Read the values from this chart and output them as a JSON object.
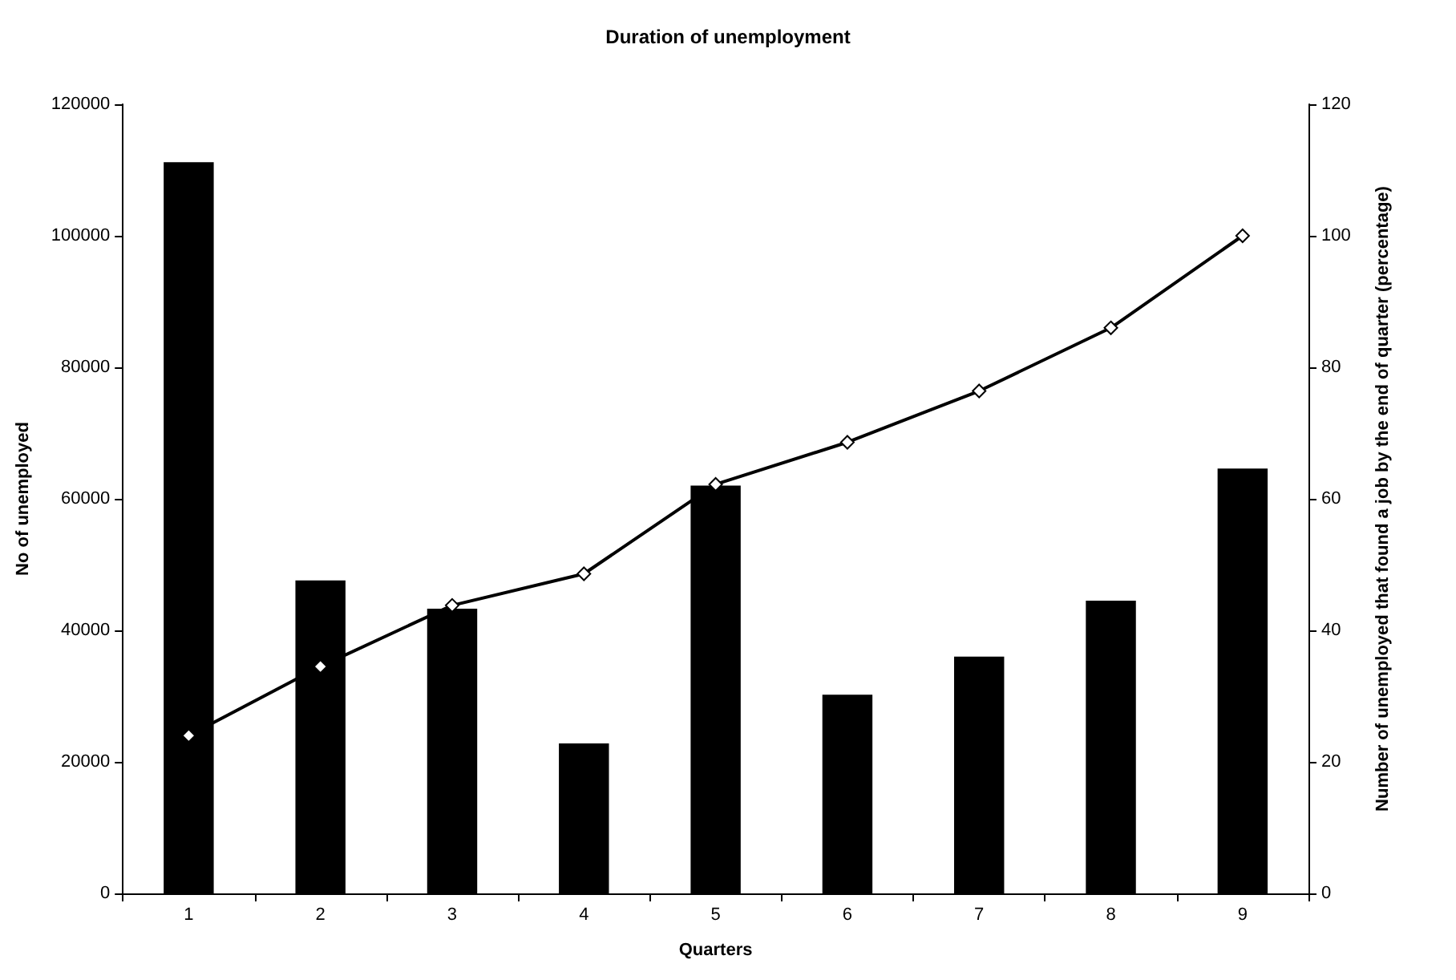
{
  "chart_data": {
    "type": "bar",
    "title": "Duration of unemployment",
    "xlabel": "Quarters",
    "ylabel": "No of unemployed",
    "y2label": "Number of unemployed that found a job by the end of quarter (percentage)",
    "categories": [
      "1",
      "2",
      "3",
      "4",
      "5",
      "6",
      "7",
      "8",
      "9"
    ],
    "series": [
      {
        "color": "#000000",
        "values": [
          111200,
          47600,
          43300,
          22800,
          62000,
          30200,
          36000,
          44500,
          64600
        ]
      },
      {
        "type": "line",
        "axis": "y2",
        "color": "#000000",
        "marker": "diamond",
        "values": [
          24,
          34.5,
          43.8,
          48.6,
          62.2,
          68.6,
          76.4,
          86,
          100
        ]
      }
    ],
    "ylim": [
      0,
      120000
    ],
    "yticks": [
      0,
      20000,
      40000,
      60000,
      80000,
      100000,
      120000
    ],
    "y2lim": [
      0,
      120
    ],
    "y2ticks": [
      0,
      20,
      40,
      60,
      80,
      100,
      120
    ],
    "grid": false
  }
}
